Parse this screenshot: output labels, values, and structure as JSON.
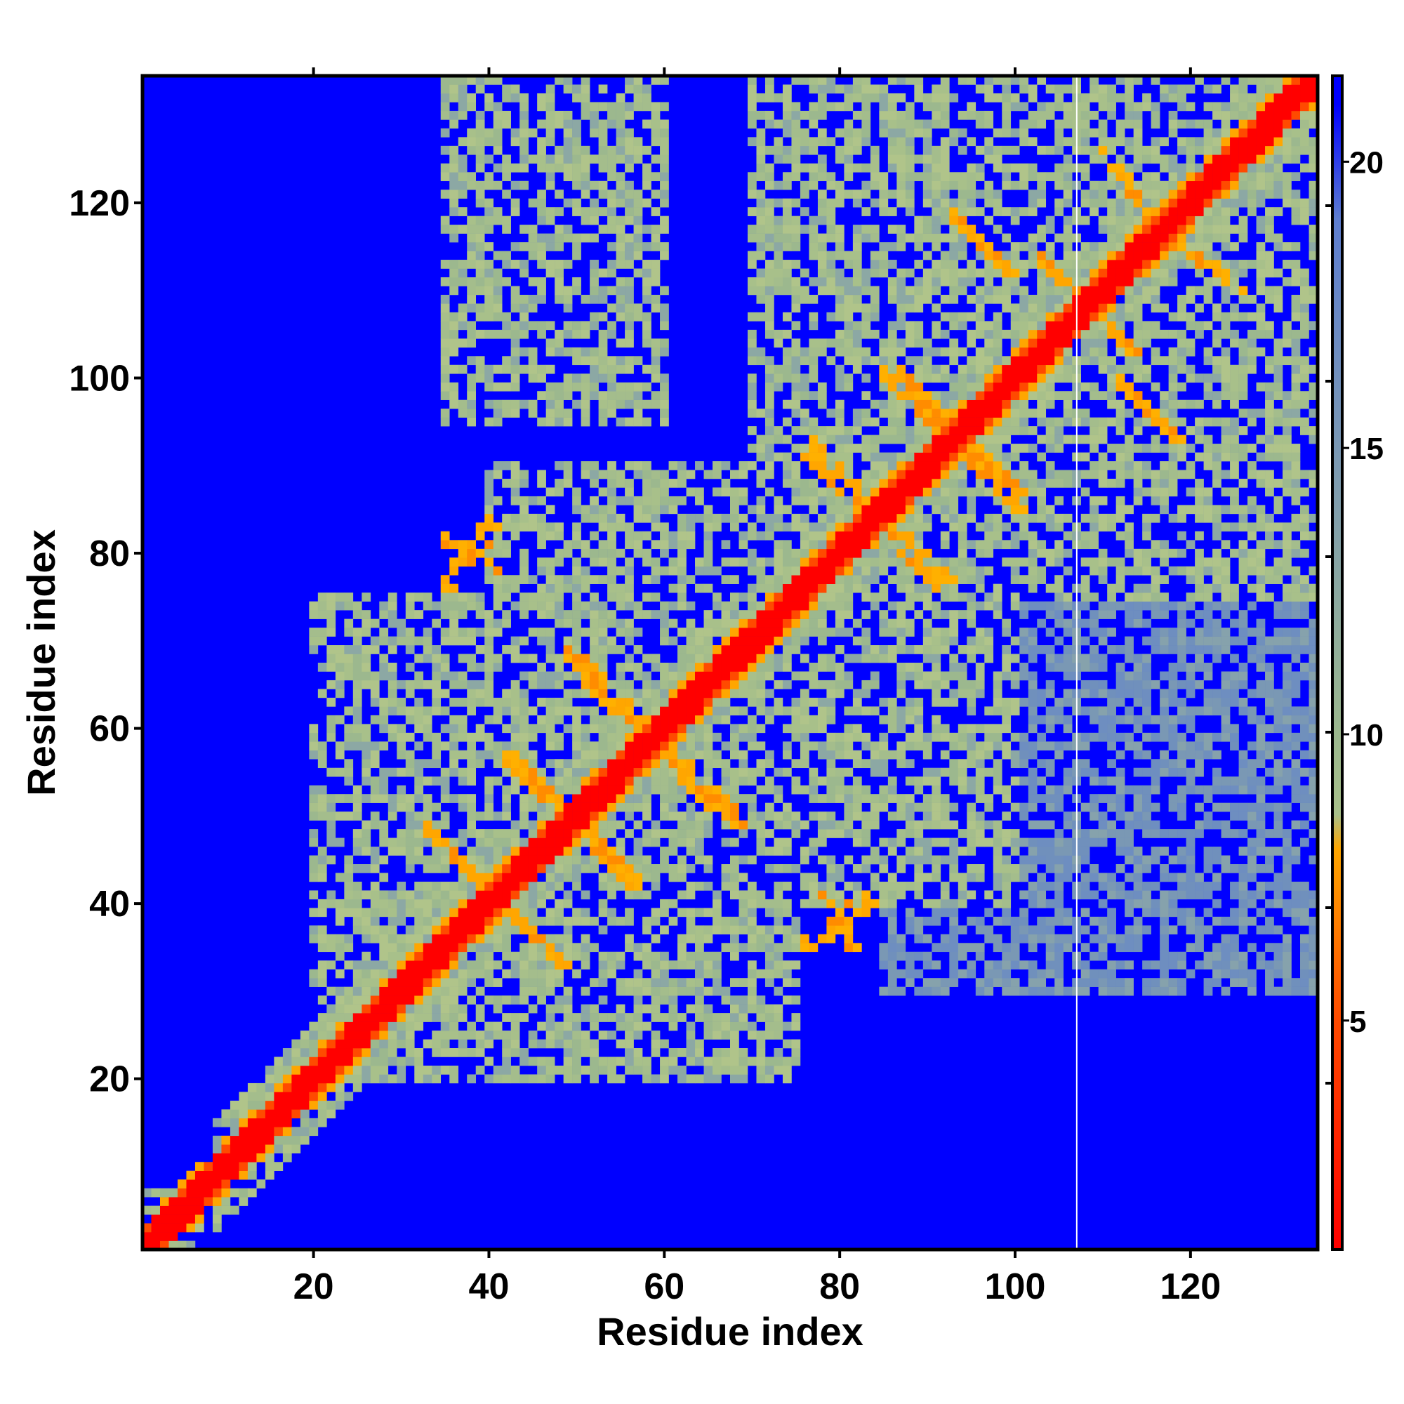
{
  "chart_data": {
    "type": "heatmap",
    "title": "",
    "xlabel": "Residue index",
    "ylabel": "Residue index",
    "n_residues": 134,
    "xlim": [
      1,
      134
    ],
    "ylim": [
      1,
      134
    ],
    "x_ticks": [
      20,
      40,
      60,
      80,
      100,
      120
    ],
    "y_ticks": [
      20,
      40,
      60,
      80,
      100,
      120
    ],
    "colorbar": {
      "range": [
        1,
        21.5
      ],
      "ticks": [
        5,
        10,
        15,
        20
      ],
      "stops": [
        {
          "value": 1,
          "color": "#ff0000"
        },
        {
          "value": 5,
          "color": "#ff4a00"
        },
        {
          "value": 8,
          "color": "#ffa600"
        },
        {
          "value": 8.6,
          "color": "#a8c08a"
        },
        {
          "value": 10,
          "color": "#9cb88e"
        },
        {
          "value": 15,
          "color": "#7a98b4"
        },
        {
          "value": 19,
          "color": "#5e7ed0"
        },
        {
          "value": 21,
          "color": "#0000ff"
        }
      ]
    },
    "gap_column": 107,
    "colors": {
      "background_cell": "#0000ff",
      "diagonal": "#ff0000",
      "close_contact": "#ffa600",
      "medium": "#a4bd8c",
      "far": "#7a98b4",
      "gap": "#ffffff"
    },
    "contact_regions": [
      {
        "x": [
          1,
          7
        ],
        "y": [
          1,
          7
        ],
        "level": "medium"
      },
      {
        "x": [
          20,
          50
        ],
        "y": [
          20,
          50
        ],
        "level": "medium"
      },
      {
        "x": [
          20,
          60
        ],
        "y": [
          40,
          75
        ],
        "level": "medium"
      },
      {
        "x": [
          35,
          75
        ],
        "y": [
          20,
          60
        ],
        "level": "medium"
      },
      {
        "x": [
          40,
          100
        ],
        "y": [
          60,
          90
        ],
        "level": "medium"
      },
      {
        "x": [
          60,
          100
        ],
        "y": [
          40,
          75
        ],
        "level": "medium"
      },
      {
        "x": [
          70,
          134
        ],
        "y": [
          75,
          134
        ],
        "level": "medium"
      },
      {
        "x": [
          35,
          60
        ],
        "y": [
          95,
          134
        ],
        "level": "medium"
      },
      {
        "x": [
          85,
          134
        ],
        "y": [
          30,
          65
        ],
        "level": "far"
      },
      {
        "x": [
          100,
          134
        ],
        "y": [
          60,
          85
        ],
        "level": "far"
      }
    ],
    "beta_strands": [
      {
        "x": [
          33,
          45
        ],
        "y": [
          48,
          36
        ],
        "level": "close_contact"
      },
      {
        "x": [
          42,
          56
        ],
        "y": [
          56,
          43
        ],
        "level": "close_contact"
      },
      {
        "x": [
          51,
          65
        ],
        "y": [
          67,
          51
        ],
        "level": "close_contact"
      },
      {
        "x": [
          59,
          68
        ],
        "y": [
          58,
          49
        ],
        "level": "close_contact"
      },
      {
        "x": [
          76,
          86
        ],
        "y": [
          91,
          82
        ],
        "level": "close_contact"
      },
      {
        "x": [
          87,
          98
        ],
        "y": [
          100,
          89
        ],
        "level": "close_contact"
      },
      {
        "x": [
          93,
          100
        ],
        "y": [
          92,
          85
        ],
        "level": "close_contact"
      },
      {
        "x": [
          106,
          113
        ],
        "y": [
          110,
          103
        ],
        "level": "close_contact"
      },
      {
        "x": [
          110,
          116
        ],
        "y": [
          125,
          117
        ],
        "level": "close_contact"
      },
      {
        "x": [
          112,
          118
        ],
        "y": [
          99,
          93
        ],
        "level": "close_contact"
      },
      {
        "x": [
          85,
          92
        ],
        "y": [
          84,
          77
        ],
        "level": "close_contact"
      },
      {
        "x": [
          76,
          83
        ],
        "y": [
          35,
          40
        ],
        "level": "close_contact"
      },
      {
        "x": [
          35,
          40
        ],
        "y": [
          81,
          78
        ],
        "level": "close_contact"
      }
    ]
  }
}
